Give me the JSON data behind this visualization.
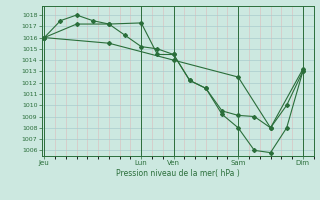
{
  "bg_color": "#cce8e0",
  "grid_major_color": "#aacccc",
  "grid_minor_color": "#ddbbbb",
  "line_color": "#2a6e3a",
  "xlabel": "Pression niveau de la mer( hPa )",
  "ylim": [
    1005.5,
    1018.8
  ],
  "yticks": [
    1006,
    1007,
    1008,
    1009,
    1010,
    1011,
    1012,
    1013,
    1014,
    1015,
    1016,
    1017,
    1018
  ],
  "xtick_labels": [
    "Jeu",
    "Lun",
    "Ven",
    "Sam",
    "Dim"
  ],
  "xtick_positions": [
    0,
    36,
    48,
    72,
    96
  ],
  "xlim": [
    -1,
    100
  ],
  "series1": {
    "x": [
      0,
      12,
      24,
      36,
      42,
      48,
      54,
      60,
      66,
      72,
      78,
      84,
      90,
      96
    ],
    "y": [
      1016.0,
      1017.2,
      1017.2,
      1017.3,
      1014.5,
      1014.5,
      1012.2,
      1011.5,
      1009.5,
      1009.1,
      1009.0,
      1008.0,
      1010.0,
      1013.0
    ]
  },
  "series2": {
    "x": [
      0,
      6,
      12,
      18,
      24,
      30,
      36,
      42,
      48,
      54,
      60,
      66,
      72,
      78,
      84,
      90,
      96
    ],
    "y": [
      1016.0,
      1017.5,
      1018.0,
      1017.5,
      1017.2,
      1016.2,
      1015.2,
      1015.0,
      1014.5,
      1012.2,
      1011.5,
      1009.2,
      1008.0,
      1006.0,
      1005.8,
      1008.0,
      1013.0
    ]
  },
  "series3": {
    "x": [
      0,
      24,
      48,
      72,
      84,
      96
    ],
    "y": [
      1016.0,
      1015.5,
      1014.0,
      1012.5,
      1008.0,
      1013.2
    ]
  }
}
